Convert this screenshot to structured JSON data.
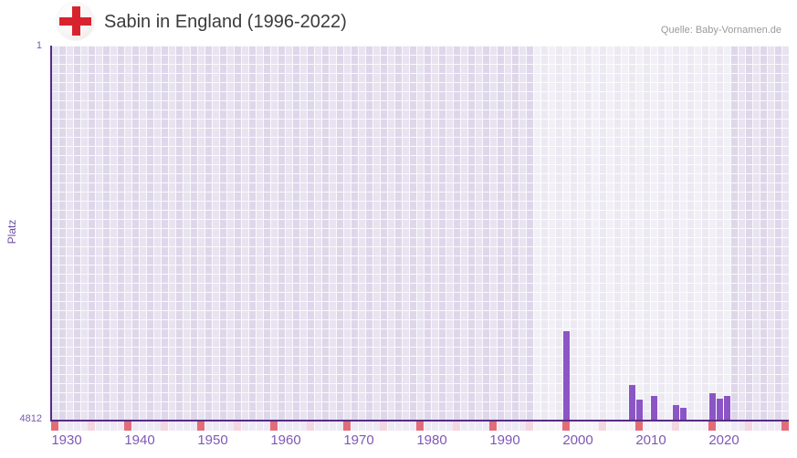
{
  "header": {
    "flag_icon": "england-flag-icon",
    "title": "Sabin in England (1996-2022)",
    "source": "Quelle: Baby-Vornamen.de"
  },
  "chart_data": {
    "type": "bar",
    "title": "Sabin in England (1996-2022)",
    "xlabel": "",
    "ylabel": "Platz",
    "y_axis": {
      "min": 1,
      "max": 4812,
      "inverted": true,
      "tick_top": "1",
      "tick_bottom": "4812"
    },
    "x_axis": {
      "first_grid_year": 1930,
      "last_grid_year": 2030,
      "tick_labels": [
        "1930",
        "1940",
        "1950",
        "1960",
        "1970",
        "1980",
        "1990",
        "2000",
        "2010",
        "2020"
      ],
      "decade_marker_years": [
        1930,
        1940,
        1950,
        1960,
        1970,
        1980,
        1990,
        2000,
        2010,
        2020,
        2030
      ],
      "half_decade_marker_years": [
        1935,
        1945,
        1955,
        1965,
        1975,
        1985,
        1995,
        2005,
        2015,
        2025
      ]
    },
    "highlight_period": {
      "start_year": 1996,
      "end_year": 2022
    },
    "series": [
      {
        "name": "Platz",
        "points": [
          {
            "year": 2000,
            "rank": 3664
          },
          {
            "year": 2009,
            "rank": 4356
          },
          {
            "year": 2010,
            "rank": 4543
          },
          {
            "year": 2012,
            "rank": 4496
          },
          {
            "year": 2015,
            "rank": 4613
          },
          {
            "year": 2016,
            "rank": 4648
          },
          {
            "year": 2020,
            "rank": 4461
          },
          {
            "year": 2021,
            "rank": 4531
          },
          {
            "year": 2022,
            "rank": 4496
          }
        ]
      }
    ],
    "legend": {
      "visible": false
    },
    "grid": {
      "visible": true
    },
    "colors": {
      "bar": "#8c55c6",
      "axis_line": "#562c87",
      "x_tick_label": "#7e58b4",
      "y_tick_label": "#7a57b0",
      "decade_marker": "#e26d79",
      "half_decade_marker": "#f3d6e0",
      "grid_cell_light": "#e8e3f1",
      "grid_cell_dark": "#ded7ea",
      "title_text": "#3b3b3b",
      "source_text": "#9a9a9a",
      "flag_cross_red": "#d8232f"
    }
  }
}
